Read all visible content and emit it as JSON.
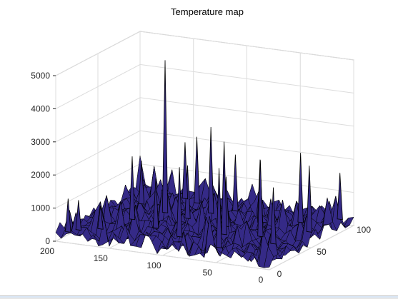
{
  "chart_data": {
    "type": "surface",
    "title": "Temperature map",
    "xlabel": "",
    "ylabel": "",
    "zlabel": "",
    "x_axis": {
      "range": [
        0,
        200
      ],
      "ticks": [
        200,
        150,
        100,
        50,
        0
      ]
    },
    "y_axis": {
      "range": [
        0,
        100
      ],
      "ticks": [
        0,
        50,
        100
      ]
    },
    "z_axis": {
      "range": [
        0,
        5000
      ],
      "ticks": [
        0,
        1000,
        2000,
        3000,
        4000,
        5000
      ]
    },
    "grid": true,
    "colormap": "parula",
    "edge_color": "#000000",
    "peaks": [
      {
        "x": 190,
        "y": 2,
        "z": 1300
      },
      {
        "x": 185,
        "y": 8,
        "z": 1200
      },
      {
        "x": 170,
        "y": 15,
        "z": 1000
      },
      {
        "x": 160,
        "y": 40,
        "z": 2200
      },
      {
        "x": 145,
        "y": 60,
        "z": 4900
      },
      {
        "x": 130,
        "y": 30,
        "z": 1800
      },
      {
        "x": 120,
        "y": 55,
        "z": 1900
      },
      {
        "x": 110,
        "y": 70,
        "z": 2900
      },
      {
        "x": 100,
        "y": 20,
        "z": 2400
      },
      {
        "x": 95,
        "y": 80,
        "z": 2000
      },
      {
        "x": 80,
        "y": 50,
        "z": 1800
      },
      {
        "x": 70,
        "y": 35,
        "z": 3100
      },
      {
        "x": 60,
        "y": 65,
        "z": 2200
      },
      {
        "x": 55,
        "y": 10,
        "z": 2700
      },
      {
        "x": 40,
        "y": 40,
        "z": 2600
      },
      {
        "x": 30,
        "y": 75,
        "z": 2400
      },
      {
        "x": 20,
        "y": 30,
        "z": 2000
      },
      {
        "x": 10,
        "y": 60,
        "z": 2300
      },
      {
        "x": 5,
        "y": 90,
        "z": 1700
      },
      {
        "x": 150,
        "y": 90,
        "z": 2000
      },
      {
        "x": 135,
        "y": 85,
        "z": 2300
      },
      {
        "x": 175,
        "y": 70,
        "z": 1600
      }
    ]
  },
  "colors": {
    "surface_low": "#352a87",
    "surface_mid": "#0f5cdd",
    "surface_high": "#14d2b8",
    "grid": "#dcdcdc",
    "box": "#bdbdbd"
  }
}
